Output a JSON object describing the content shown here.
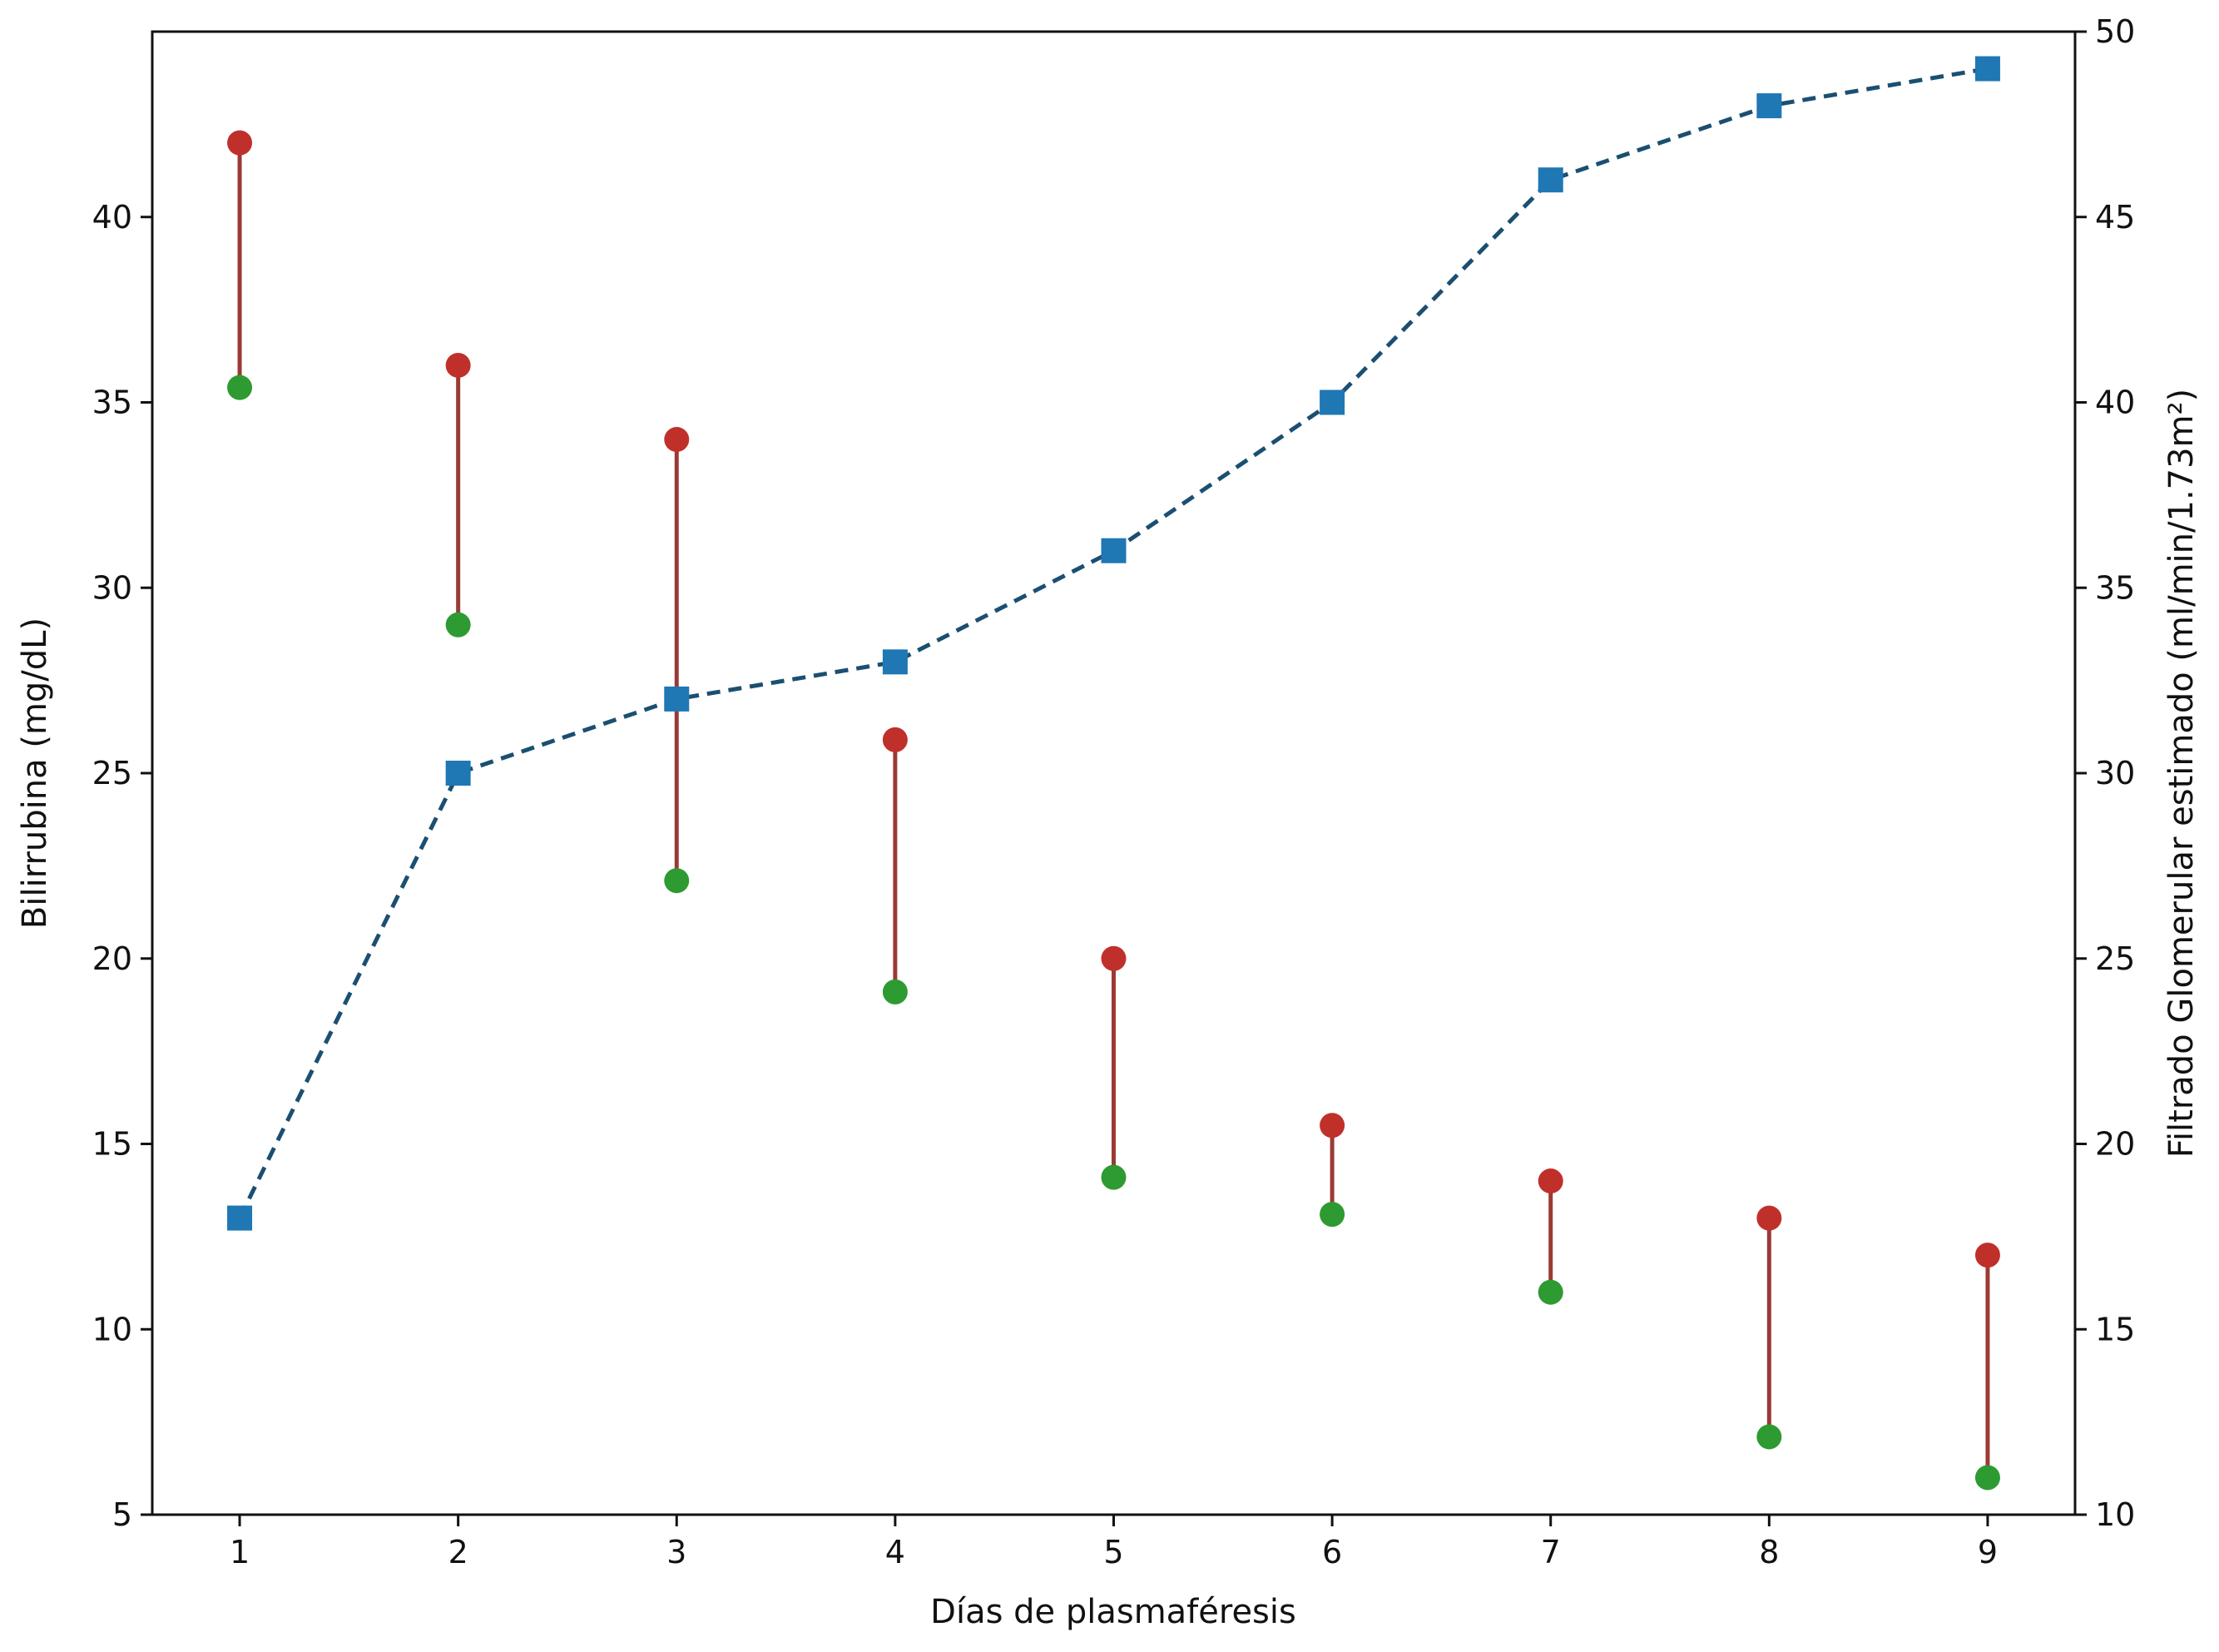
{
  "chart_data": {
    "type": "line",
    "xlabel": "Días de plasmaféresis",
    "ylabel_left": "Bilirrubina (mg/dL)",
    "ylabel_right": "Filtrado Glomerular estimado (ml/min/1.73m²)",
    "x": [
      1,
      2,
      3,
      4,
      5,
      6,
      7,
      8,
      9
    ],
    "xlim": [
      0.6,
      9.4
    ],
    "ylim_left": [
      5,
      45
    ],
    "ylim_right": [
      10,
      50
    ],
    "xticks": [
      "1",
      "2",
      "3",
      "4",
      "5",
      "6",
      "7",
      "8",
      "9"
    ],
    "yticks_left": [
      "5",
      "10",
      "15",
      "20",
      "25",
      "30",
      "35",
      "40"
    ],
    "yticks_right": [
      "10",
      "15",
      "20",
      "25",
      "30",
      "35",
      "40",
      "45",
      "50"
    ],
    "grid": false,
    "legend": "none",
    "series": [
      {
        "axis": "left",
        "kind": "points",
        "color": "#c0302a",
        "values": [
          42,
          36,
          34,
          25.9,
          20,
          15.5,
          14,
          13,
          12
        ]
      },
      {
        "axis": "left",
        "kind": "points",
        "color": "#2e9a32",
        "values": [
          35.4,
          29,
          22.1,
          19.1,
          14.1,
          13.1,
          11,
          7.1,
          6
        ]
      },
      {
        "axis": "right",
        "kind": "dashed-line-square-markers",
        "color": "#1f77b4",
        "line_color": "#1b4f72",
        "values": [
          18,
          30,
          32,
          33,
          36,
          40,
          46,
          48,
          49
        ]
      }
    ],
    "connector_color": "#9b3a35"
  }
}
